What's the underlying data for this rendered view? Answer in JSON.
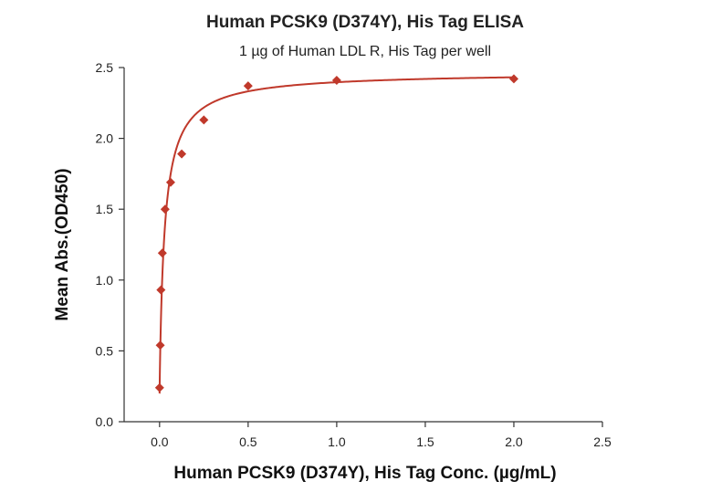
{
  "chart_data": {
    "type": "scatter",
    "title": "Human PCSK9 (D374Y), His Tag ELISA",
    "subtitle": "1 µg of Human LDL R, His Tag per well",
    "xlabel": "Human PCSK9 (D374Y), His Tag Conc. (µg/mL)",
    "ylabel": "Mean Abs.(OD450)",
    "xlim": [
      -0.2,
      2.5
    ],
    "ylim": [
      0.0,
      2.5
    ],
    "x_ticks": [
      "0.0",
      "0.5",
      "1.0",
      "1.5",
      "2.0",
      "2.5"
    ],
    "y_ticks": [
      "0.0",
      "0.5",
      "1.0",
      "1.5",
      "2.0",
      "2.5"
    ],
    "grid": false,
    "marker_color": "#c0392b",
    "line_color": "#c0392b",
    "series": [
      {
        "x": [
          0.0,
          0.0039,
          0.0078,
          0.0156,
          0.0313,
          0.0625,
          0.125,
          0.25,
          0.5,
          1.0,
          2.0
        ],
        "y": [
          0.24,
          0.54,
          0.93,
          1.19,
          1.5,
          1.69,
          1.89,
          2.13,
          2.37,
          2.41,
          2.42
        ]
      }
    ],
    "fit_curve": {
      "type": "4PL",
      "bottom": 0.2,
      "top": 2.47,
      "ec50": 0.028,
      "hill": 0.95
    }
  }
}
